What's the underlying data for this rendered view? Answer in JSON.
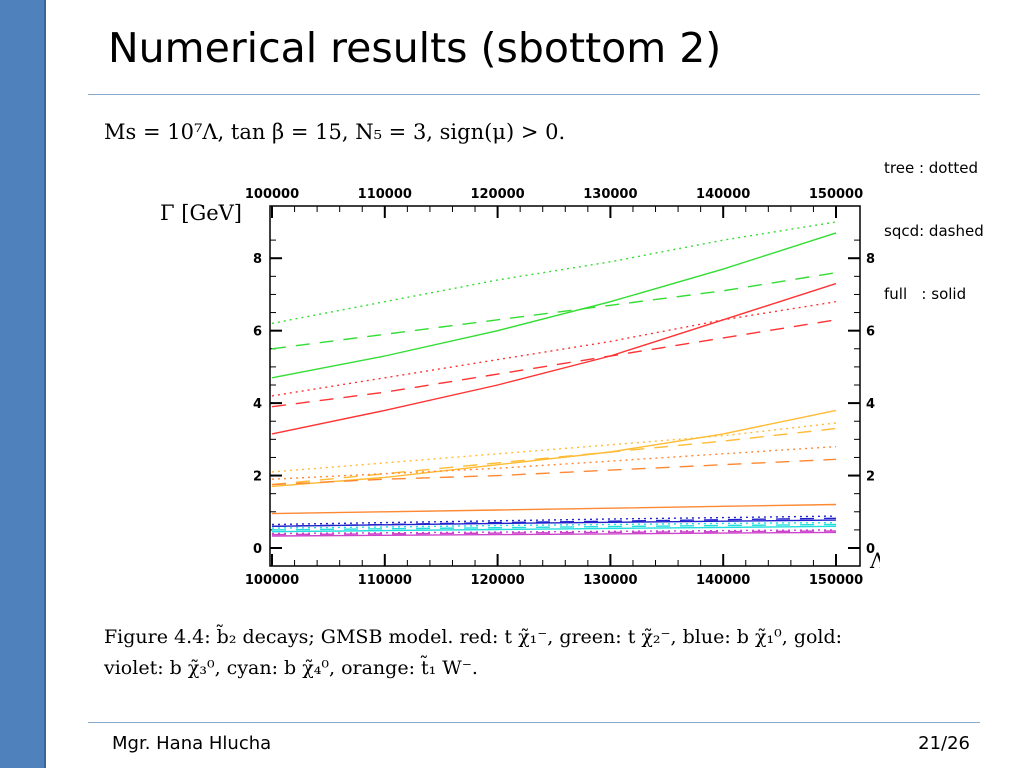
{
  "slide": {
    "title": "Numerical results (sbottom 2)",
    "parameters": "Ms = 10⁷Λ, tan β = 15, N₅ = 3, sign(μ) > 0.",
    "legend": [
      "tree : dotted",
      "sqcd: dashed",
      "full   : solid"
    ],
    "caption_line1": "Figure 4.4: b̃₂ decays; GMSB model. red: t χ̃₁⁻, green: t χ̃₂⁻, blue: b χ̃₁⁰, gold:",
    "caption_line2": "violet: b χ̃₃⁰, cyan: b χ̃₄⁰, orange: t̃₁ W⁻.",
    "footer_author": "Mgr. Hana Hlucha",
    "footer_page": "21/26"
  },
  "colors": {
    "accent_bar": "#4f81bd",
    "red": "#ff3333",
    "green": "#33dd33",
    "gold": "#ffbb33",
    "orange": "#ff8833",
    "blue": "#2222cc",
    "violet": "#cc44cc",
    "cyan": "#22dddd"
  },
  "chart_data": {
    "type": "line",
    "xlabel": "Λ [GeV]",
    "ylabel": "Γ [GeV]",
    "xlim": [
      100000,
      150000
    ],
    "ylim": [
      0,
      9
    ],
    "x_ticks": [
      100000,
      110000,
      120000,
      130000,
      140000,
      150000
    ],
    "y_ticks": [
      0,
      2,
      4,
      6,
      8
    ],
    "x": [
      100000,
      110000,
      120000,
      130000,
      140000,
      150000
    ],
    "series": [
      {
        "name": "green",
        "style": "dotted",
        "color": "#33dd33",
        "values": [
          6.2,
          6.8,
          7.4,
          7.9,
          8.5,
          9.0
        ]
      },
      {
        "name": "green",
        "style": "dashed",
        "color": "#33dd33",
        "values": [
          5.5,
          5.9,
          6.3,
          6.7,
          7.1,
          7.6
        ]
      },
      {
        "name": "green",
        "style": "solid",
        "color": "#33dd33",
        "values": [
          4.7,
          5.3,
          6.0,
          6.8,
          7.7,
          8.7
        ]
      },
      {
        "name": "red",
        "style": "dotted",
        "color": "#ff3333",
        "values": [
          4.2,
          4.7,
          5.2,
          5.7,
          6.3,
          6.8
        ]
      },
      {
        "name": "red",
        "style": "dashed",
        "color": "#ff3333",
        "values": [
          3.9,
          4.3,
          4.8,
          5.3,
          5.8,
          6.3
        ]
      },
      {
        "name": "red",
        "style": "solid",
        "color": "#ff3333",
        "values": [
          3.15,
          3.8,
          4.5,
          5.3,
          6.3,
          7.3
        ]
      },
      {
        "name": "gold",
        "style": "dotted",
        "color": "#ffbb33",
        "values": [
          2.1,
          2.35,
          2.6,
          2.85,
          3.1,
          3.45
        ]
      },
      {
        "name": "gold",
        "style": "dashed",
        "color": "#ffbb33",
        "values": [
          1.75,
          2.05,
          2.35,
          2.65,
          2.95,
          3.3
        ]
      },
      {
        "name": "gold",
        "style": "solid",
        "color": "#ffbb33",
        "values": [
          1.7,
          1.95,
          2.3,
          2.65,
          3.15,
          3.8
        ]
      },
      {
        "name": "orange",
        "style": "dotted",
        "color": "#ff8833",
        "values": [
          1.9,
          2.05,
          2.2,
          2.4,
          2.6,
          2.8
        ]
      },
      {
        "name": "orange",
        "style": "dashed",
        "color": "#ff8833",
        "values": [
          1.75,
          1.9,
          2.0,
          2.15,
          2.3,
          2.45
        ]
      },
      {
        "name": "orange",
        "style": "solid",
        "color": "#ff8833",
        "values": [
          0.95,
          1.0,
          1.05,
          1.1,
          1.15,
          1.2
        ]
      },
      {
        "name": "blue",
        "style": "dotted",
        "color": "#2222cc",
        "values": [
          0.65,
          0.7,
          0.75,
          0.8,
          0.84,
          0.88
        ]
      },
      {
        "name": "blue",
        "style": "dashed",
        "color": "#2222cc",
        "values": [
          0.6,
          0.65,
          0.7,
          0.74,
          0.78,
          0.82
        ]
      },
      {
        "name": "blue",
        "style": "solid",
        "color": "#2222cc",
        "values": [
          0.6,
          0.64,
          0.68,
          0.71,
          0.74,
          0.77
        ]
      },
      {
        "name": "cyan",
        "style": "dotted",
        "color": "#22dddd",
        "values": [
          0.55,
          0.58,
          0.62,
          0.65,
          0.68,
          0.7
        ]
      },
      {
        "name": "cyan",
        "style": "dashed",
        "color": "#22dddd",
        "values": [
          0.5,
          0.53,
          0.56,
          0.59,
          0.62,
          0.65
        ]
      },
      {
        "name": "cyan",
        "style": "solid",
        "color": "#22dddd",
        "values": [
          0.45,
          0.48,
          0.51,
          0.54,
          0.57,
          0.6
        ]
      },
      {
        "name": "violet",
        "style": "dotted",
        "color": "#cc44cc",
        "values": [
          0.4,
          0.42,
          0.44,
          0.46,
          0.48,
          0.5
        ]
      },
      {
        "name": "violet",
        "style": "dashed",
        "color": "#cc44cc",
        "values": [
          0.37,
          0.39,
          0.41,
          0.43,
          0.45,
          0.47
        ]
      },
      {
        "name": "violet",
        "style": "solid",
        "color": "#cc44cc",
        "values": [
          0.33,
          0.35,
          0.37,
          0.39,
          0.41,
          0.43
        ]
      }
    ]
  }
}
